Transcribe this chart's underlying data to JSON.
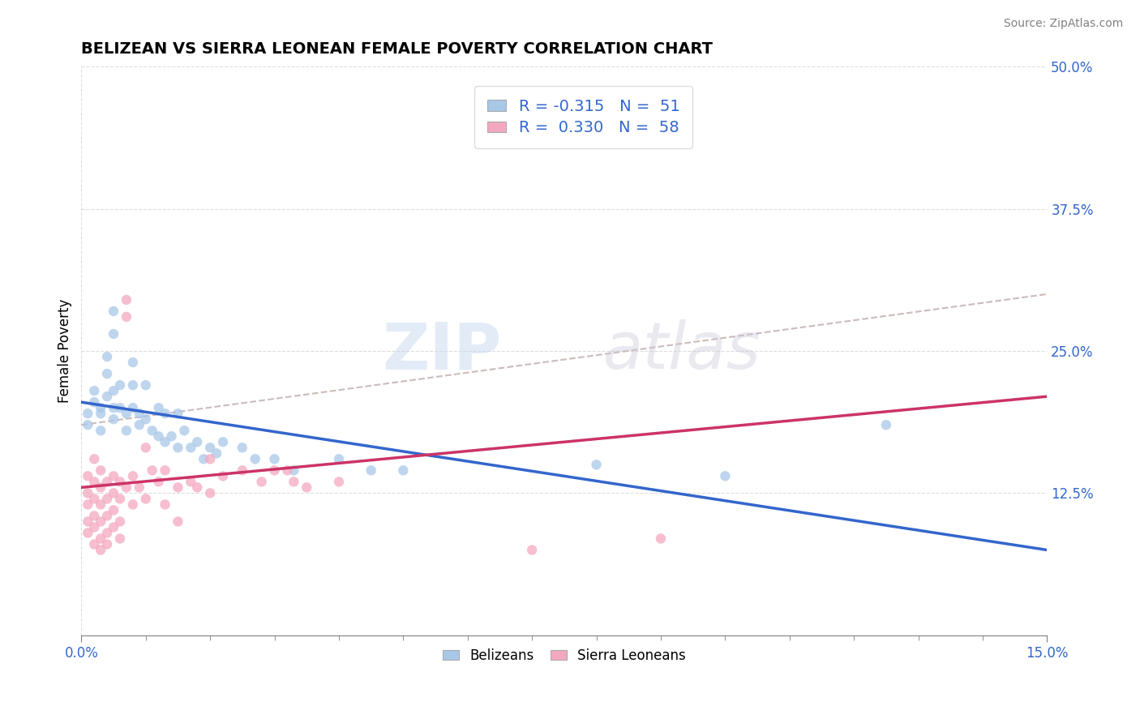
{
  "title": "BELIZEAN VS SIERRA LEONEAN FEMALE POVERTY CORRELATION CHART",
  "source": "Source: ZipAtlas.com",
  "ylabel": "Female Poverty",
  "xlim": [
    0.0,
    0.15
  ],
  "ylim": [
    0.0,
    0.5
  ],
  "xticks_major": [
    0.0,
    0.15
  ],
  "xtick_labels_major": [
    "0.0%",
    "15.0%"
  ],
  "xticks_minor": [
    0.01,
    0.02,
    0.03,
    0.04,
    0.05,
    0.06,
    0.07,
    0.08,
    0.09,
    0.1,
    0.11,
    0.12,
    0.13,
    0.14
  ],
  "yticks_right": [
    0.0,
    0.125,
    0.25,
    0.375,
    0.5
  ],
  "ytick_labels_right": [
    "",
    "12.5%",
    "25.0%",
    "37.5%",
    "50.0%"
  ],
  "blue_R": -0.315,
  "blue_N": 51,
  "pink_R": 0.33,
  "pink_N": 58,
  "blue_color": "#A8C8E8",
  "pink_color": "#F4A8C0",
  "blue_line_color": "#3366CC",
  "pink_line_color": "#CC3366",
  "dashed_line_color": "#CCBBBB",
  "blue_trend": [
    0.0,
    0.205,
    0.15,
    0.075
  ],
  "pink_trend": [
    0.0,
    0.13,
    0.15,
    0.21
  ],
  "dashed_trend": [
    0.0,
    0.185,
    0.15,
    0.3
  ],
  "blue_scatter": [
    [
      0.001,
      0.195
    ],
    [
      0.001,
      0.185
    ],
    [
      0.002,
      0.215
    ],
    [
      0.002,
      0.205
    ],
    [
      0.003,
      0.2
    ],
    [
      0.003,
      0.195
    ],
    [
      0.003,
      0.18
    ],
    [
      0.004,
      0.245
    ],
    [
      0.004,
      0.23
    ],
    [
      0.004,
      0.21
    ],
    [
      0.005,
      0.285
    ],
    [
      0.005,
      0.265
    ],
    [
      0.005,
      0.215
    ],
    [
      0.005,
      0.2
    ],
    [
      0.005,
      0.19
    ],
    [
      0.006,
      0.22
    ],
    [
      0.006,
      0.2
    ],
    [
      0.007,
      0.195
    ],
    [
      0.007,
      0.18
    ],
    [
      0.008,
      0.24
    ],
    [
      0.008,
      0.22
    ],
    [
      0.008,
      0.2
    ],
    [
      0.009,
      0.195
    ],
    [
      0.009,
      0.185
    ],
    [
      0.01,
      0.22
    ],
    [
      0.01,
      0.19
    ],
    [
      0.011,
      0.18
    ],
    [
      0.012,
      0.2
    ],
    [
      0.012,
      0.175
    ],
    [
      0.013,
      0.195
    ],
    [
      0.013,
      0.17
    ],
    [
      0.014,
      0.175
    ],
    [
      0.015,
      0.195
    ],
    [
      0.015,
      0.165
    ],
    [
      0.016,
      0.18
    ],
    [
      0.017,
      0.165
    ],
    [
      0.018,
      0.17
    ],
    [
      0.019,
      0.155
    ],
    [
      0.02,
      0.165
    ],
    [
      0.021,
      0.16
    ],
    [
      0.022,
      0.17
    ],
    [
      0.025,
      0.165
    ],
    [
      0.027,
      0.155
    ],
    [
      0.03,
      0.155
    ],
    [
      0.033,
      0.145
    ],
    [
      0.04,
      0.155
    ],
    [
      0.045,
      0.145
    ],
    [
      0.05,
      0.145
    ],
    [
      0.08,
      0.15
    ],
    [
      0.1,
      0.14
    ],
    [
      0.125,
      0.185
    ]
  ],
  "pink_scatter": [
    [
      0.001,
      0.14
    ],
    [
      0.001,
      0.125
    ],
    [
      0.001,
      0.115
    ],
    [
      0.001,
      0.1
    ],
    [
      0.001,
      0.09
    ],
    [
      0.002,
      0.155
    ],
    [
      0.002,
      0.135
    ],
    [
      0.002,
      0.12
    ],
    [
      0.002,
      0.105
    ],
    [
      0.002,
      0.095
    ],
    [
      0.002,
      0.08
    ],
    [
      0.003,
      0.145
    ],
    [
      0.003,
      0.13
    ],
    [
      0.003,
      0.115
    ],
    [
      0.003,
      0.1
    ],
    [
      0.003,
      0.085
    ],
    [
      0.003,
      0.075
    ],
    [
      0.004,
      0.135
    ],
    [
      0.004,
      0.12
    ],
    [
      0.004,
      0.105
    ],
    [
      0.004,
      0.09
    ],
    [
      0.004,
      0.08
    ],
    [
      0.005,
      0.14
    ],
    [
      0.005,
      0.125
    ],
    [
      0.005,
      0.11
    ],
    [
      0.005,
      0.095
    ],
    [
      0.006,
      0.135
    ],
    [
      0.006,
      0.12
    ],
    [
      0.006,
      0.1
    ],
    [
      0.006,
      0.085
    ],
    [
      0.007,
      0.295
    ],
    [
      0.007,
      0.28
    ],
    [
      0.007,
      0.13
    ],
    [
      0.008,
      0.14
    ],
    [
      0.008,
      0.115
    ],
    [
      0.009,
      0.13
    ],
    [
      0.01,
      0.165
    ],
    [
      0.01,
      0.12
    ],
    [
      0.011,
      0.145
    ],
    [
      0.012,
      0.135
    ],
    [
      0.013,
      0.145
    ],
    [
      0.013,
      0.115
    ],
    [
      0.015,
      0.13
    ],
    [
      0.015,
      0.1
    ],
    [
      0.017,
      0.135
    ],
    [
      0.018,
      0.13
    ],
    [
      0.02,
      0.155
    ],
    [
      0.02,
      0.125
    ],
    [
      0.022,
      0.14
    ],
    [
      0.025,
      0.145
    ],
    [
      0.028,
      0.135
    ],
    [
      0.03,
      0.145
    ],
    [
      0.032,
      0.145
    ],
    [
      0.033,
      0.135
    ],
    [
      0.035,
      0.13
    ],
    [
      0.04,
      0.135
    ],
    [
      0.07,
      0.075
    ],
    [
      0.09,
      0.085
    ]
  ],
  "watermark_zip": "ZIP",
  "watermark_atlas": "atlas",
  "background_color": "#FFFFFF",
  "grid_color": "#DDDDDD"
}
